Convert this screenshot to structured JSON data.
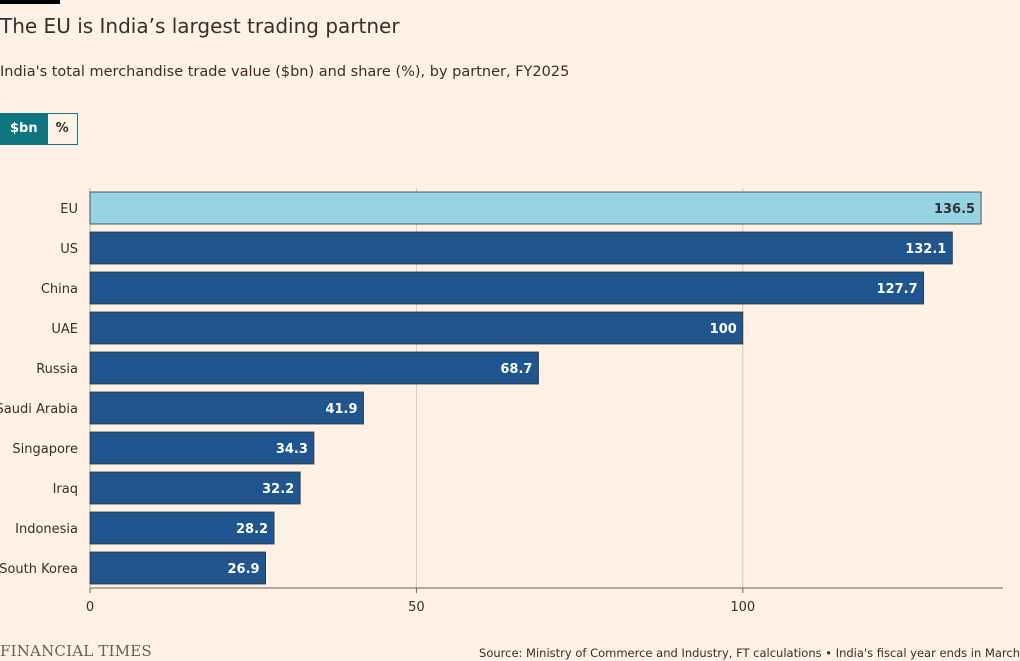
{
  "header": {
    "title": "The EU is India’s largest trading partner",
    "subtitle": "India's total merchandise trade value ($bn) and share (%), by partner, FY2025"
  },
  "toggle": {
    "options": [
      "$bn",
      "%"
    ],
    "selected": "$bn"
  },
  "colors": {
    "background": "#fff1e5",
    "highlight": "#96d4e5",
    "bar": "#1f5690",
    "toggle_active": "#0d7680"
  },
  "chart_data": {
    "type": "bar",
    "orientation": "horizontal",
    "categories": [
      "EU",
      "US",
      "China",
      "UAE",
      "Russia",
      "Saudi Arabia",
      "Singapore",
      "Iraq",
      "Indonesia",
      "South Korea"
    ],
    "values": [
      136.5,
      132.1,
      127.7,
      100,
      68.7,
      41.9,
      34.3,
      32.2,
      28.2,
      26.9
    ],
    "value_labels": [
      "136.5",
      "132.1",
      "127.7",
      "100",
      "68.7",
      "41.9",
      "34.3",
      "32.2",
      "28.2",
      "26.9"
    ],
    "highlighted_category": "EU",
    "xticks": [
      0,
      50,
      100
    ],
    "xtick_labels": [
      "0",
      "50",
      "100"
    ],
    "xlim": [
      0,
      140
    ],
    "grid": true
  },
  "footer": {
    "brand": "FINANCIAL TIMES",
    "source": "Source: Ministry of Commerce and Industry, FT calculations • India's fiscal year ends in March"
  }
}
